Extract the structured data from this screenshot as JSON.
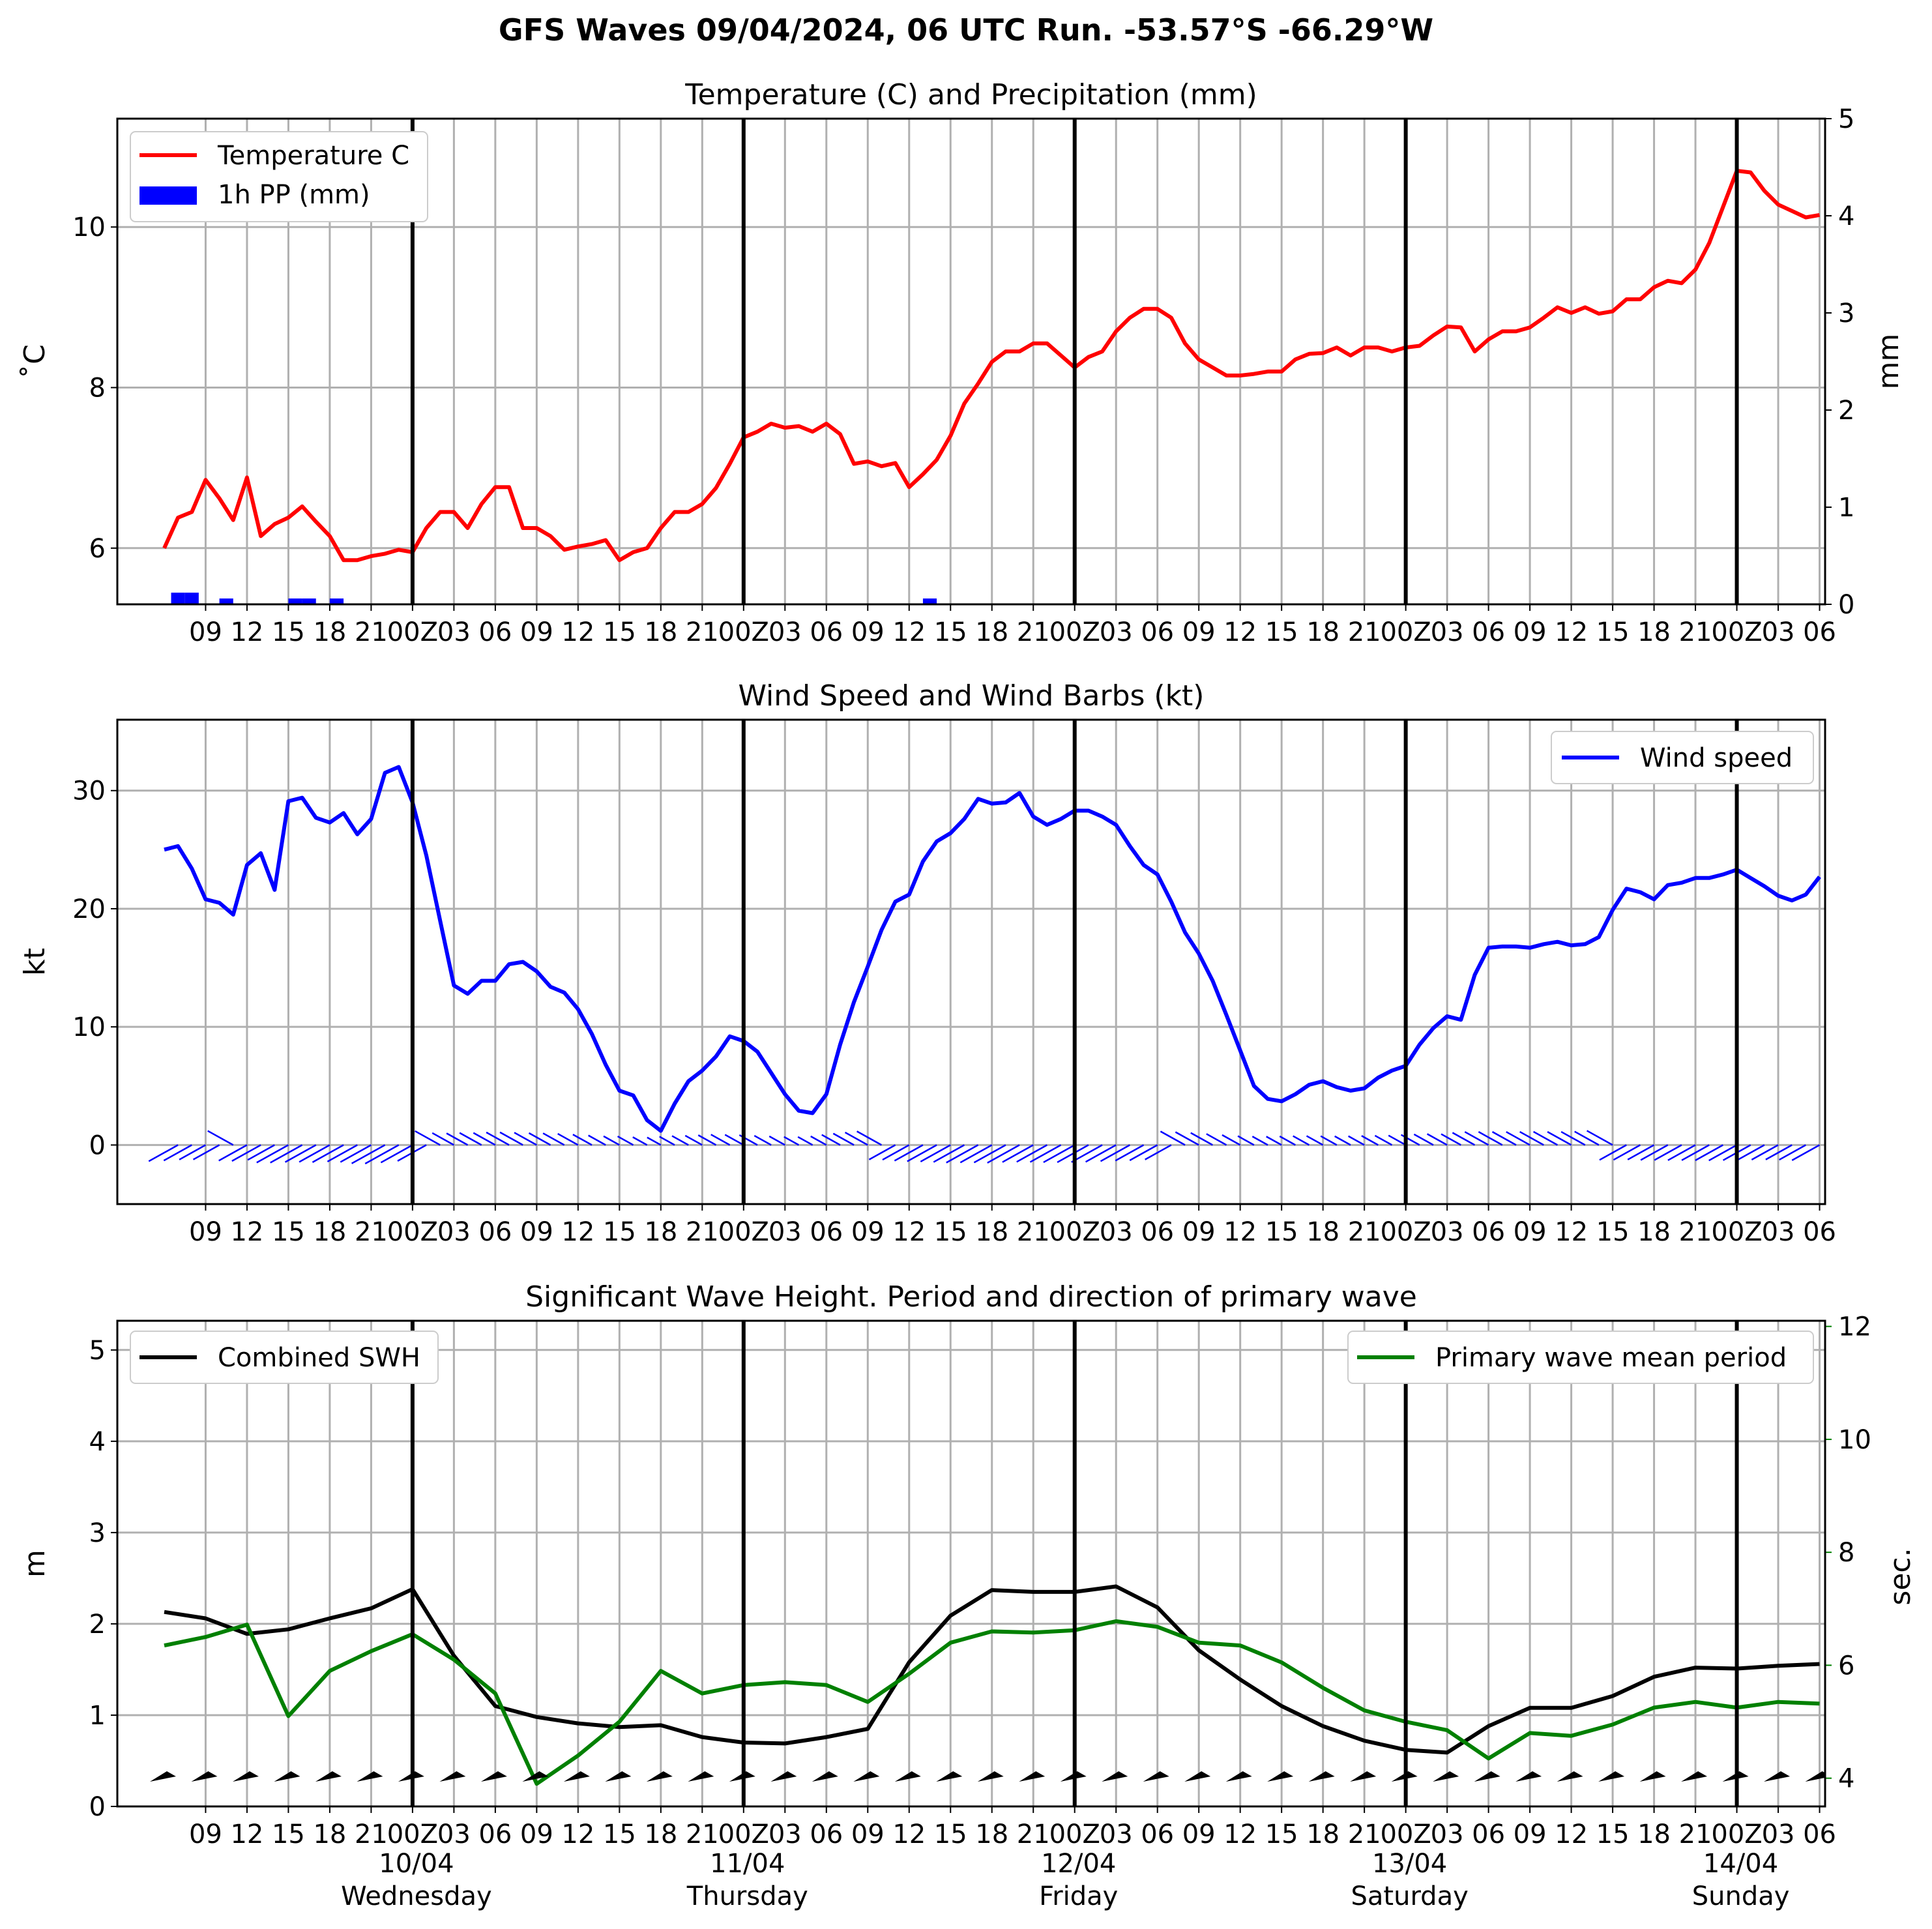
{
  "figure_title": "GFS Waves 09/04/2024, 06 UTC Run. -53.57°S -66.29°W",
  "x_tick_labels": [
    "09",
    "12",
    "15",
    "18",
    "21",
    "00Z",
    "03",
    "06",
    "09",
    "12",
    "15",
    "18",
    "21",
    "00Z",
    "03",
    "06",
    "09",
    "12",
    "15",
    "18",
    "21",
    "00Z",
    "03",
    "06",
    "09",
    "12",
    "15",
    "18",
    "21",
    "00Z",
    "03",
    "06",
    "09",
    "12",
    "15",
    "18",
    "21",
    "00Z",
    "03",
    "06"
  ],
  "day_labels": [
    {
      "date": "10/04",
      "day": "Wednesday"
    },
    {
      "date": "11/04",
      "day": "Thursday"
    },
    {
      "date": "12/04",
      "day": "Friday"
    },
    {
      "date": "13/04",
      "day": "Saturday"
    },
    {
      "date": "14/04",
      "day": "Sunday"
    }
  ],
  "colors": {
    "temperature": "#ff0000",
    "precip": "#0000ff",
    "wind": "#0000ff",
    "swh": "#000000",
    "period": "#008000",
    "grid": "#b0b0b0",
    "midnight": "#000000"
  },
  "chart_data": [
    {
      "type": "line",
      "title": "Temperature (C) and Precipitation (mm)",
      "x_unit": "hours since 09/04 06 UTC",
      "ylabel": "˚C",
      "ylabel_right": "mm",
      "ylim": [
        5.3,
        11.35
      ],
      "ylim_right": [
        0,
        5
      ],
      "yticks": [
        6,
        8,
        10
      ],
      "yticks_right": [
        0,
        1,
        2,
        3,
        4,
        5
      ],
      "legend": {
        "position": "top-left",
        "entries": [
          "Temperature C",
          "1h PP (mm)"
        ]
      },
      "grid": true,
      "series": [
        {
          "name": "Temperature C",
          "axis": "left",
          "x": [
            0,
            1,
            2,
            3,
            4,
            5,
            6,
            7,
            8,
            9,
            10,
            11,
            12,
            13,
            14,
            15,
            16,
            17,
            18,
            19,
            20,
            21,
            22,
            23,
            24,
            25,
            26,
            27,
            28,
            29,
            30,
            31,
            32,
            33,
            34,
            35,
            36,
            37,
            38,
            39,
            40,
            41,
            42,
            43,
            44,
            45,
            46,
            47,
            48,
            49,
            50,
            51,
            52,
            53,
            54,
            55,
            56,
            57,
            58,
            59,
            60,
            61,
            62,
            63,
            64,
            65,
            66,
            67,
            68,
            69,
            70,
            71,
            72,
            73,
            74,
            75,
            76,
            77,
            78,
            79,
            80,
            81,
            82,
            83,
            84,
            85,
            86,
            87,
            88,
            89,
            90,
            91,
            92,
            93,
            94,
            95,
            96,
            97,
            98,
            99,
            100,
            101,
            102,
            103,
            104,
            105,
            106,
            107,
            108,
            109,
            110,
            111,
            112,
            113,
            114,
            115,
            116,
            117,
            118,
            119,
            120
          ],
          "y": [
            6.0,
            6.38,
            6.45,
            6.85,
            6.62,
            6.35,
            6.88,
            6.15,
            6.3,
            6.38,
            6.52,
            6.33,
            6.15,
            5.85,
            5.85,
            5.9,
            5.93,
            5.98,
            5.95,
            6.25,
            6.45,
            6.45,
            6.25,
            6.55,
            6.76,
            6.76,
            6.25,
            6.25,
            6.15,
            5.98,
            6.02,
            6.05,
            6.1,
            5.85,
            5.95,
            6.0,
            6.25,
            6.45,
            6.45,
            6.55,
            6.75,
            7.05,
            7.38,
            7.45,
            7.55,
            7.5,
            7.52,
            7.45,
            7.55,
            7.42,
            7.05,
            7.08,
            7.02,
            7.06,
            6.76,
            6.92,
            7.1,
            7.4,
            7.8,
            8.05,
            8.32,
            8.45,
            8.45,
            8.55,
            8.55,
            8.4,
            8.25,
            8.38,
            8.45,
            8.7,
            8.87,
            8.98,
            8.98,
            8.87,
            8.55,
            8.35,
            8.25,
            8.15,
            8.15,
            8.17,
            8.2,
            8.2,
            8.35,
            8.42,
            8.43,
            8.5,
            8.4,
            8.5,
            8.5,
            8.45,
            8.5,
            8.52,
            8.65,
            8.76,
            8.75,
            8.45,
            8.6,
            8.7,
            8.7,
            8.75,
            8.87,
            9.0,
            8.93,
            9.0,
            8.92,
            8.95,
            9.1,
            9.1,
            9.25,
            9.33,
            9.3,
            9.47,
            9.8,
            10.25,
            10.7,
            10.68,
            10.45,
            10.28,
            10.2,
            10.12,
            10.15
          ]
        },
        {
          "name": "1h PP (mm)",
          "type": "bar",
          "axis": "right",
          "x": [
            1,
            2,
            4.5,
            9.5,
            10.5,
            12.5,
            55.5
          ],
          "y": [
            0.12,
            0.12,
            0.06,
            0.06,
            0.06,
            0.06,
            0.06
          ]
        }
      ]
    },
    {
      "type": "line",
      "title": "Wind Speed and Wind Barbs (kt)",
      "x_unit": "hours since 09/04 06 UTC",
      "ylabel": "kt",
      "ylim": [
        -5,
        36
      ],
      "yticks": [
        0,
        10,
        20,
        30
      ],
      "legend": {
        "position": "top-right",
        "entries": [
          "Wind speed"
        ]
      },
      "grid": true,
      "series": [
        {
          "name": "Wind speed",
          "x": [
            0,
            1,
            2,
            3,
            4,
            5,
            6,
            7,
            8,
            9,
            10,
            11,
            12,
            13,
            14,
            15,
            16,
            17,
            18,
            19,
            20,
            21,
            22,
            23,
            24,
            25,
            26,
            27,
            28,
            29,
            30,
            31,
            32,
            33,
            34,
            35,
            36,
            37,
            38,
            39,
            40,
            41,
            42,
            43,
            44,
            45,
            46,
            47,
            48,
            49,
            50,
            51,
            52,
            53,
            54,
            55,
            56,
            57,
            58,
            59,
            60,
            61,
            62,
            63,
            64,
            65,
            66,
            67,
            68,
            69,
            70,
            71,
            72,
            73,
            74,
            75,
            76,
            77,
            78,
            79,
            80,
            81,
            82,
            83,
            84,
            85,
            86,
            87,
            88,
            89,
            90,
            91,
            92,
            93,
            94,
            95,
            96,
            97,
            98,
            99,
            100,
            101,
            102,
            103,
            104,
            105,
            106,
            107,
            108,
            109,
            110,
            111,
            112,
            113,
            114,
            115,
            116,
            117,
            118,
            119,
            120
          ],
          "y": [
            25.0,
            25.3,
            23.4,
            20.8,
            20.5,
            19.5,
            23.7,
            24.7,
            21.6,
            29.1,
            29.4,
            27.7,
            27.3,
            28.1,
            26.3,
            27.6,
            31.5,
            32.0,
            29.0,
            24.5,
            19.0,
            13.5,
            12.8,
            13.9,
            13.9,
            15.3,
            15.5,
            14.7,
            13.4,
            12.9,
            11.5,
            9.4,
            6.8,
            4.6,
            4.2,
            2.1,
            1.2,
            3.5,
            5.4,
            6.3,
            7.5,
            9.2,
            8.8,
            7.9,
            6.1,
            4.3,
            2.9,
            2.7,
            4.3,
            8.5,
            12.1,
            15.1,
            18.2,
            20.6,
            21.2,
            24.0,
            25.7,
            26.4,
            27.6,
            29.3,
            28.9,
            29.0,
            29.8,
            27.8,
            27.1,
            27.6,
            28.3,
            28.3,
            27.8,
            27.1,
            25.3,
            23.7,
            22.9,
            20.6,
            18.0,
            16.2,
            13.9,
            11.0,
            8.0,
            5.0,
            3.9,
            3.7,
            4.3,
            5.1,
            5.4,
            4.9,
            4.6,
            4.8,
            5.7,
            6.3,
            6.7,
            8.5,
            9.9,
            10.9,
            10.6,
            14.4,
            16.7,
            16.8,
            16.8,
            16.7,
            17.0,
            17.2,
            16.9,
            17.0,
            17.6,
            19.9,
            21.7,
            21.4,
            20.8,
            22.0,
            22.2,
            22.6,
            22.6,
            22.9,
            23.3,
            22.6,
            21.9,
            21.1,
            20.7,
            21.2,
            22.7
          ]
        }
      ]
    },
    {
      "type": "line",
      "title": "Significant Wave Height. Period and direction of primary wave",
      "x_unit": "hours since 09/04 06 UTC",
      "ylabel": "m",
      "ylabel_right": "sec.",
      "ylim": [
        0,
        5.32
      ],
      "ylim_right": [
        3.5,
        12.1
      ],
      "yticks": [
        0,
        1,
        2,
        3,
        4,
        5
      ],
      "yticks_right": [
        4,
        6,
        8,
        10,
        12
      ],
      "legend": {
        "position": "top-left and top-right",
        "entries": [
          "Combined SWH",
          "Primary wave mean period"
        ]
      },
      "grid": true,
      "series": [
        {
          "name": "Combined SWH",
          "axis": "left",
          "x": [
            0,
            3,
            6,
            9,
            12,
            15,
            18,
            21,
            24,
            27,
            30,
            33,
            36,
            39,
            42,
            45,
            48,
            51,
            54,
            57,
            60,
            63,
            66,
            69,
            72,
            75,
            78,
            81,
            84,
            87,
            90,
            93,
            96,
            99,
            102,
            105,
            108,
            111,
            114,
            117,
            120
          ],
          "y": [
            2.13,
            2.06,
            1.89,
            1.94,
            2.06,
            2.17,
            2.38,
            1.65,
            1.1,
            0.98,
            0.91,
            0.87,
            0.89,
            0.76,
            0.7,
            0.69,
            0.76,
            0.85,
            1.58,
            2.09,
            2.37,
            2.35,
            2.35,
            2.41,
            2.18,
            1.71,
            1.39,
            1.1,
            0.88,
            0.72,
            0.62,
            0.59,
            0.88,
            1.08,
            1.08,
            1.21,
            1.42,
            1.52,
            1.51,
            1.54,
            1.56
          ]
        },
        {
          "name": "Primary wave mean period",
          "axis": "right",
          "x": [
            0,
            3,
            6,
            9,
            12,
            15,
            18,
            21,
            24,
            27,
            30,
            33,
            36,
            39,
            42,
            45,
            48,
            51,
            54,
            57,
            60,
            63,
            66,
            69,
            72,
            75,
            78,
            81,
            84,
            87,
            90,
            93,
            96,
            99,
            102,
            105,
            108,
            111,
            114,
            117,
            120
          ],
          "y": [
            6.35,
            6.5,
            6.72,
            5.1,
            5.9,
            6.25,
            6.55,
            6.1,
            5.5,
            3.9,
            4.4,
            5.0,
            5.9,
            5.5,
            5.65,
            5.7,
            5.65,
            5.35,
            5.85,
            6.4,
            6.6,
            6.58,
            6.62,
            6.78,
            6.68,
            6.4,
            6.35,
            6.05,
            5.6,
            5.2,
            5.0,
            4.85,
            4.35,
            4.8,
            4.75,
            4.95,
            5.25,
            5.35,
            5.25,
            5.35,
            5.32
          ]
        }
      ]
    }
  ]
}
